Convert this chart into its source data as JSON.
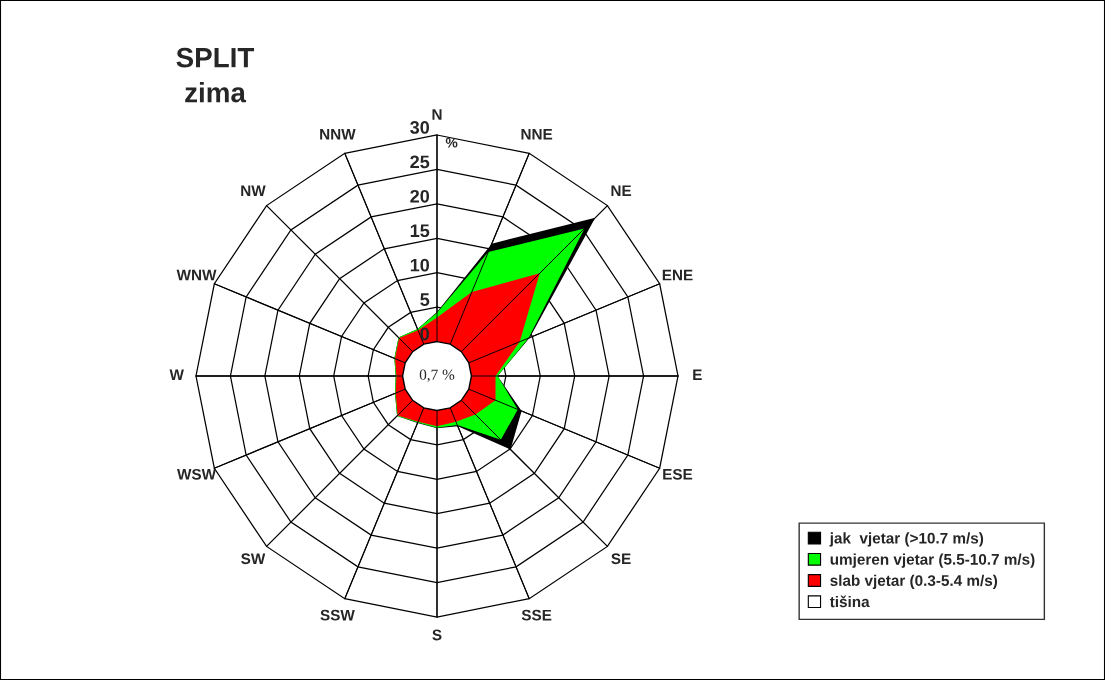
{
  "chart_data": {
    "type": "radar",
    "title": "SPLIT",
    "subtitle": "zima",
    "ylabel": "%",
    "categories": [
      "N",
      "NNE",
      "NE",
      "ENE",
      "E",
      "ESE",
      "SE",
      "SSE",
      "S",
      "SSW",
      "SW",
      "WSW",
      "W",
      "WNW",
      "NW",
      "NNW"
    ],
    "series": [
      {
        "name": "jak  vjetar (>10.7 m/s)",
        "color": "#000000",
        "values": [
          4.3,
          15.8,
          27.5,
          9.6,
          3.8,
          8.3,
          10.1,
          2.9,
          2.6,
          2.4,
          3.2,
          1.6,
          1.0,
          1.7,
          2.9,
          2.4
        ]
      },
      {
        "name": "umjeren vjetar (5.5-10.7 m/s)",
        "color": "#00ff00",
        "values": [
          4.2,
          14.5,
          25.3,
          9.4,
          3.8,
          7.7,
          8.1,
          2.7,
          2.5,
          2.3,
          3.2,
          1.6,
          1.0,
          1.7,
          2.9,
          2.4
        ]
      },
      {
        "name": "slab vjetar (0.3-5.4 m/s)",
        "color": "#ff0000",
        "values": [
          3.5,
          8.2,
          16.1,
          8.0,
          3.5,
          4.2,
          2.9,
          2.2,
          2.3,
          2.2,
          3.1,
          1.5,
          0.9,
          1.6,
          2.8,
          2.2
        ]
      },
      {
        "name": "tišina",
        "color": "#ffffff",
        "values": [
          null,
          null,
          null,
          null,
          null,
          null,
          null,
          null,
          null,
          null,
          null,
          null,
          null,
          null,
          null,
          null
        ]
      }
    ],
    "annotations": [
      "0,7 %"
    ],
    "ylim": [
      -5,
      30
    ],
    "yticks": [
      0,
      5,
      10,
      15,
      20,
      25,
      30
    ],
    "grid": true,
    "legend": "bottom right"
  }
}
